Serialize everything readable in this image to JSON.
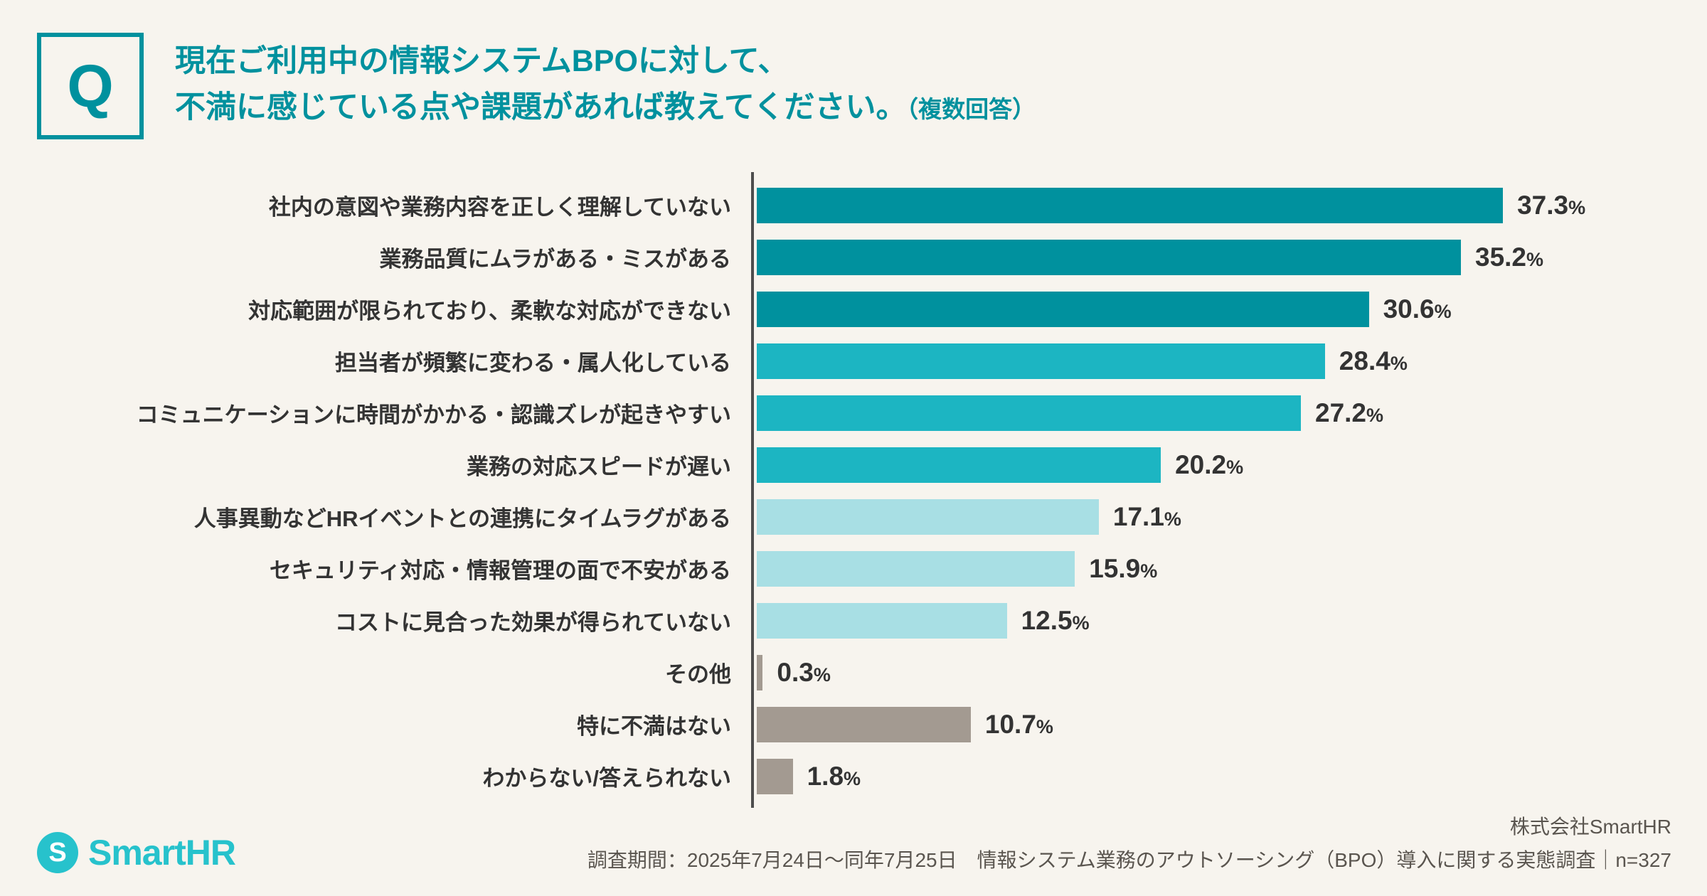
{
  "header": {
    "q_label": "Q",
    "title_line1": "現在ご利用中の情報システムBPOに対して、",
    "title_line2": "不満に感じている点や課題があれば教えてください。",
    "title_note": "（複数回答）"
  },
  "chart_data": {
    "type": "bar",
    "orientation": "horizontal",
    "axis_max": 40,
    "unit": "%",
    "grid": false,
    "legend": false,
    "categories": [
      "社内の意図や業務内容を正しく理解していない",
      "業務品質にムラがある・ミスがある",
      "対応範囲が限られており、柔軟な対応ができない",
      "担当者が頻繁に変わる・属人化している",
      "コミュニケーションに時間がかかる・認識ズレが起きやすい",
      "業務の対応スピードが遅い",
      "人事異動などHRイベントとの連携にタイムラグがある",
      "セキュリティ対応・情報管理の面で不安がある",
      "コストに見合った効果が得られていない",
      "その他",
      "特に不満はない",
      "わからない/答えられない"
    ],
    "values": [
      37.3,
      35.2,
      30.6,
      28.4,
      27.2,
      20.2,
      17.1,
      15.9,
      12.5,
      0.3,
      10.7,
      1.8
    ],
    "colors": [
      "#00919E",
      "#00919E",
      "#00919E",
      "#1CB5C2",
      "#1CB5C2",
      "#1CB5C2",
      "#A8DFE4",
      "#A8DFE4",
      "#A8DFE4",
      "#A39A91",
      "#A39A91",
      "#A39A91"
    ],
    "accent_color": "#00919E",
    "axis_line_color": "#4d4d4d"
  },
  "footer": {
    "logo_text": "SmartHR",
    "logo_mark": "S",
    "company": "株式会社SmartHR",
    "survey_info": "調査期間：2025年7月24日～同年7月25日　情報システム業務のアウトソーシング（BPO）導入に関する実態調査｜n=327"
  }
}
